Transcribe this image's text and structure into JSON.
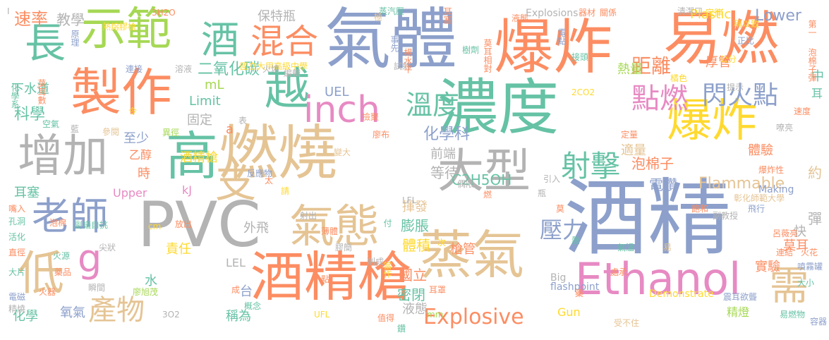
{
  "colors": {
    "blue": "#8da0cb",
    "orange": "#fc8d62",
    "green": "#a6d854",
    "yellow": "#ffd92f",
    "tan": "#e5c494",
    "gray": "#b3b3b3",
    "teal": "#66c2a5",
    "pink": "#e78ac3"
  },
  "words": [
    {
      "text": "酒精",
      "color": "blue"
    },
    {
      "text": "氣體",
      "color": "blue"
    },
    {
      "text": "濃度",
      "color": "teal"
    },
    {
      "text": "燃燒",
      "color": "tan"
    },
    {
      "text": "PVC",
      "color": "gray"
    },
    {
      "text": "爆炸",
      "color": "orange"
    },
    {
      "text": "易燃",
      "color": "orange"
    },
    {
      "text": "酒精槍",
      "color": "orange"
    },
    {
      "text": "蒸氣",
      "color": "tan"
    },
    {
      "text": "製作",
      "color": "orange"
    },
    {
      "text": "示範",
      "color": "green"
    },
    {
      "text": "高",
      "color": "teal"
    },
    {
      "text": "增加",
      "color": "gray"
    },
    {
      "text": "大型",
      "color": "gray"
    },
    {
      "text": "Ethanol",
      "color": "pink"
    },
    {
      "text": "低",
      "color": "tan"
    },
    {
      "text": "氣態",
      "color": "tan"
    },
    {
      "text": "越",
      "color": "teal"
    },
    {
      "text": "爆炸",
      "color": "yellow"
    },
    {
      "text": "支",
      "color": "tan"
    },
    {
      "text": "老師",
      "color": "blue"
    },
    {
      "text": "長",
      "color": "teal"
    },
    {
      "text": "酒",
      "color": "teal"
    },
    {
      "text": "inch",
      "color": "pink"
    },
    {
      "text": "g",
      "color": "pink"
    },
    {
      "text": "混合",
      "color": "orange"
    },
    {
      "text": "需",
      "color": "tan"
    },
    {
      "text": "產物",
      "color": "tan"
    },
    {
      "text": "射擊",
      "color": "teal"
    },
    {
      "text": "溫度",
      "color": "teal"
    },
    {
      "text": "點燃",
      "color": "pink"
    },
    {
      "text": "閃火點",
      "color": "blue"
    },
    {
      "text": "壓力",
      "color": "blue"
    },
    {
      "text": "Explosive",
      "color": "orange"
    },
    {
      "text": "距離",
      "color": "orange"
    },
    {
      "text": "Flammable",
      "color": "tan"
    },
    {
      "text": "速率",
      "color": "orange"
    },
    {
      "text": "教學",
      "color": "gray"
    },
    {
      "text": "保特瓶",
      "color": "gray"
    },
    {
      "text": "二氧化碳",
      "color": "teal"
    },
    {
      "text": "Plastic",
      "color": "yellow"
    },
    {
      "text": "Lower",
      "color": "blue"
    },
    {
      "text": "厚管",
      "color": "orange"
    },
    {
      "text": "熱量",
      "color": "green"
    },
    {
      "text": "下水道",
      "color": "teal"
    },
    {
      "text": "科學",
      "color": "teal"
    },
    {
      "text": "mL",
      "color": "green"
    },
    {
      "text": "UEL",
      "color": "blue"
    },
    {
      "text": "Limit",
      "color": "teal"
    },
    {
      "text": "化學科",
      "color": "blue"
    },
    {
      "text": "C2H5OH",
      "color": "teal"
    },
    {
      "text": "固定",
      "color": "gray"
    },
    {
      "text": "至少",
      "color": "blue"
    },
    {
      "text": "乙醇",
      "color": "orange"
    },
    {
      "text": "時",
      "color": "orange"
    },
    {
      "text": "前端",
      "color": "gray"
    },
    {
      "text": "等待",
      "color": "gray"
    },
    {
      "text": "電鑽",
      "color": "blue"
    },
    {
      "text": "泡棉子",
      "color": "orange"
    },
    {
      "text": "適量",
      "color": "tan"
    },
    {
      "text": "體驗",
      "color": "orange"
    },
    {
      "text": "約",
      "color": "tan"
    },
    {
      "text": "中",
      "color": "teal"
    },
    {
      "text": "耳",
      "color": "teal"
    },
    {
      "text": "快",
      "color": "gray"
    },
    {
      "text": "彈",
      "color": "gray"
    },
    {
      "text": "莫耳",
      "color": "orange"
    },
    {
      "text": "實驗",
      "color": "orange"
    },
    {
      "text": "外飛",
      "color": "gray"
    },
    {
      "text": "揮發",
      "color": "tan"
    },
    {
      "text": "膨脹",
      "color": "teal"
    },
    {
      "text": "槍管",
      "color": "orange"
    },
    {
      "text": "體積",
      "color": "yellow"
    },
    {
      "text": "國立",
      "color": "orange"
    },
    {
      "text": "密閉",
      "color": "teal"
    },
    {
      "text": "液態",
      "color": "gray"
    },
    {
      "text": "精燈",
      "color": "green"
    },
    {
      "text": "酒精槍",
      "color": "yellow"
    },
    {
      "text": "責任",
      "color": "yellow"
    },
    {
      "text": "水",
      "color": "teal"
    },
    {
      "text": "LEL",
      "color": "gray"
    },
    {
      "text": "氧氣",
      "color": "blue"
    },
    {
      "text": "化學",
      "color": "teal"
    },
    {
      "text": "稱為",
      "color": "teal"
    },
    {
      "text": "Upper",
      "color": "pink"
    },
    {
      "text": "耳塞",
      "color": "teal"
    },
    {
      "text": "Making",
      "color": "blue"
    },
    {
      "text": "flashpoint",
      "color": "blue"
    },
    {
      "text": "Demonstrate",
      "color": "yellow"
    },
    {
      "text": "Big",
      "color": "gray"
    },
    {
      "text": "Gun",
      "color": "yellow"
    },
    {
      "text": "Explosions",
      "color": "gray"
    },
    {
      "text": "kJ",
      "color": "pink"
    },
    {
      "text": "a",
      "color": "orange"
    },
    {
      "text": "台",
      "color": "blue"
    },
    {
      "text": "3H2O",
      "color": "orange"
    },
    {
      "text": "2CO2",
      "color": "yellow"
    },
    {
      "text": "3O2",
      "color": "gray"
    },
    {
      "text": "UFL",
      "color": "yellow"
    },
    {
      "text": "LFL",
      "color": "gray"
    },
    {
      "text": "cm",
      "color": "yellow"
    },
    {
      "text": "mm",
      "color": "green"
    },
    {
      "text": "熱熔膠槍",
      "color": "yellow"
    },
    {
      "text": "原理",
      "color": "blue"
    },
    {
      "text": "化學系",
      "color": "teal"
    },
    {
      "text": "莫耳數",
      "color": "orange"
    },
    {
      "text": "空氣",
      "color": "teal"
    },
    {
      "text": "參閱",
      "color": "tan"
    },
    {
      "text": "異徑",
      "color": "green"
    },
    {
      "text": "反應物",
      "color": "blue"
    },
    {
      "text": "國立大甲高級中學",
      "color": "yellow"
    },
    {
      "text": "蒸汽壓",
      "color": "teal"
    },
    {
      "text": "液態",
      "color": "orange"
    },
    {
      "text": "器材",
      "color": "orange"
    },
    {
      "text": "關係",
      "color": "orange"
    },
    {
      "text": "清潔口",
      "color": "gray"
    },
    {
      "text": "定律",
      "color": "yellow"
    },
    {
      "text": "稱以致",
      "color": "yellow"
    },
    {
      "text": "第一",
      "color": "orange"
    },
    {
      "text": "電點",
      "color": "blue"
    },
    {
      "text": "正比",
      "color": "blue"
    },
    {
      "text": "泡棉子彈",
      "color": "orange"
    },
    {
      "text": "接頭",
      "color": "teal"
    },
    {
      "text": "公分",
      "color": "yellow"
    },
    {
      "text": "橘色",
      "color": "yellow"
    },
    {
      "text": "提示",
      "color": "gray"
    },
    {
      "text": "莫耳相對",
      "color": "orange"
    },
    {
      "text": "飛行",
      "color": "blue"
    },
    {
      "text": "彰化師範大學",
      "color": "tan"
    },
    {
      "text": "副教授",
      "color": "gray"
    },
    {
      "text": "呂薇亮",
      "color": "orange"
    },
    {
      "text": "連結",
      "color": "orange"
    },
    {
      "text": "火花",
      "color": "orange"
    },
    {
      "text": "處承",
      "color": "orange"
    },
    {
      "text": "震耳欲聾",
      "color": "blue"
    },
    {
      "text": "易燃物",
      "color": "teal"
    },
    {
      "text": "噴霧罐",
      "color": "blue"
    },
    {
      "text": "大小",
      "color": "teal"
    },
    {
      "text": "受不住",
      "color": "tan"
    },
    {
      "text": "氣溫",
      "color": "teal"
    },
    {
      "text": "飽和",
      "color": "orange"
    },
    {
      "text": "爆炸性",
      "color": "orange"
    },
    {
      "text": "定量",
      "color": "orange"
    },
    {
      "text": "嘹亮",
      "color": "gray"
    },
    {
      "text": "速度",
      "color": "orange"
    },
    {
      "text": "易",
      "color": "tan"
    },
    {
      "text": "熱",
      "color": "teal"
    },
    {
      "text": "藥",
      "color": "orange"
    },
    {
      "text": "容器",
      "color": "blue"
    },
    {
      "text": "太",
      "color": "orange"
    },
    {
      "text": "連接",
      "color": "blue"
    },
    {
      "text": "溶液",
      "color": "gray"
    },
    {
      "text": "火燒",
      "color": "gray"
    },
    {
      "text": "試射",
      "color": "gray"
    },
    {
      "text": "事先",
      "color": "blue"
    },
    {
      "text": "樹劑",
      "color": "teal"
    },
    {
      "text": "撿聚",
      "color": "orange"
    },
    {
      "text": "廖布",
      "color": "orange"
    },
    {
      "text": "變大",
      "color": "tan"
    },
    {
      "text": "偶限",
      "color": "gray"
    },
    {
      "text": "引入",
      "color": "gray"
    },
    {
      "text": "射出",
      "color": "gray"
    },
    {
      "text": "薄體",
      "color": "orange"
    },
    {
      "text": "膠簡",
      "color": "gray"
    },
    {
      "text": "付",
      "color": "teal"
    },
    {
      "text": "削成",
      "color": "gray"
    },
    {
      "text": "當作",
      "color": "yellow"
    },
    {
      "text": "耳罩",
      "color": "orange"
    },
    {
      "text": "值得",
      "color": "orange"
    },
    {
      "text": "鑽",
      "color": "teal"
    },
    {
      "text": "概念",
      "color": "teal"
    },
    {
      "text": "成",
      "color": "orange"
    },
    {
      "text": "放出",
      "color": "orange"
    },
    {
      "text": "廖旭茂",
      "color": "green"
    },
    {
      "text": "瞬間",
      "color": "gray"
    },
    {
      "text": "泡棉",
      "color": "orange"
    },
    {
      "text": "副議自挑",
      "color": "teal"
    },
    {
      "text": "大片",
      "color": "teal"
    },
    {
      "text": "火源",
      "color": "teal"
    },
    {
      "text": "尖狀",
      "color": "gray"
    },
    {
      "text": "藥品",
      "color": "orange"
    },
    {
      "text": "火器",
      "color": "orange"
    },
    {
      "text": "電磁",
      "color": "blue"
    },
    {
      "text": "精燒",
      "color": "gray"
    },
    {
      "text": "直徑",
      "color": "orange"
    },
    {
      "text": "活化",
      "color": "teal"
    },
    {
      "text": "孔洞",
      "color": "teal"
    },
    {
      "text": "嘴入",
      "color": "orange"
    },
    {
      "text": "請",
      "color": "yellow"
    },
    {
      "text": "令",
      "color": "yellow"
    },
    {
      "text": "表",
      "color": "gray"
    },
    {
      "text": "編輯",
      "color": "gray"
    },
    {
      "text": "耳塞",
      "color": "orange"
    },
    {
      "text": "極",
      "color": "tan"
    },
    {
      "text": "楊水平",
      "color": "orange"
    },
    {
      "text": "次",
      "color": "yellow"
    },
    {
      "text": "點",
      "color": "orange"
    },
    {
      "text": "瓶",
      "color": "gray"
    },
    {
      "text": "燃",
      "color": "orange"
    },
    {
      "text": "莫",
      "color": "orange"
    },
    {
      "text": "藍",
      "color": "gray"
    },
    {
      "text": "I",
      "color": "gray"
    }
  ]
}
